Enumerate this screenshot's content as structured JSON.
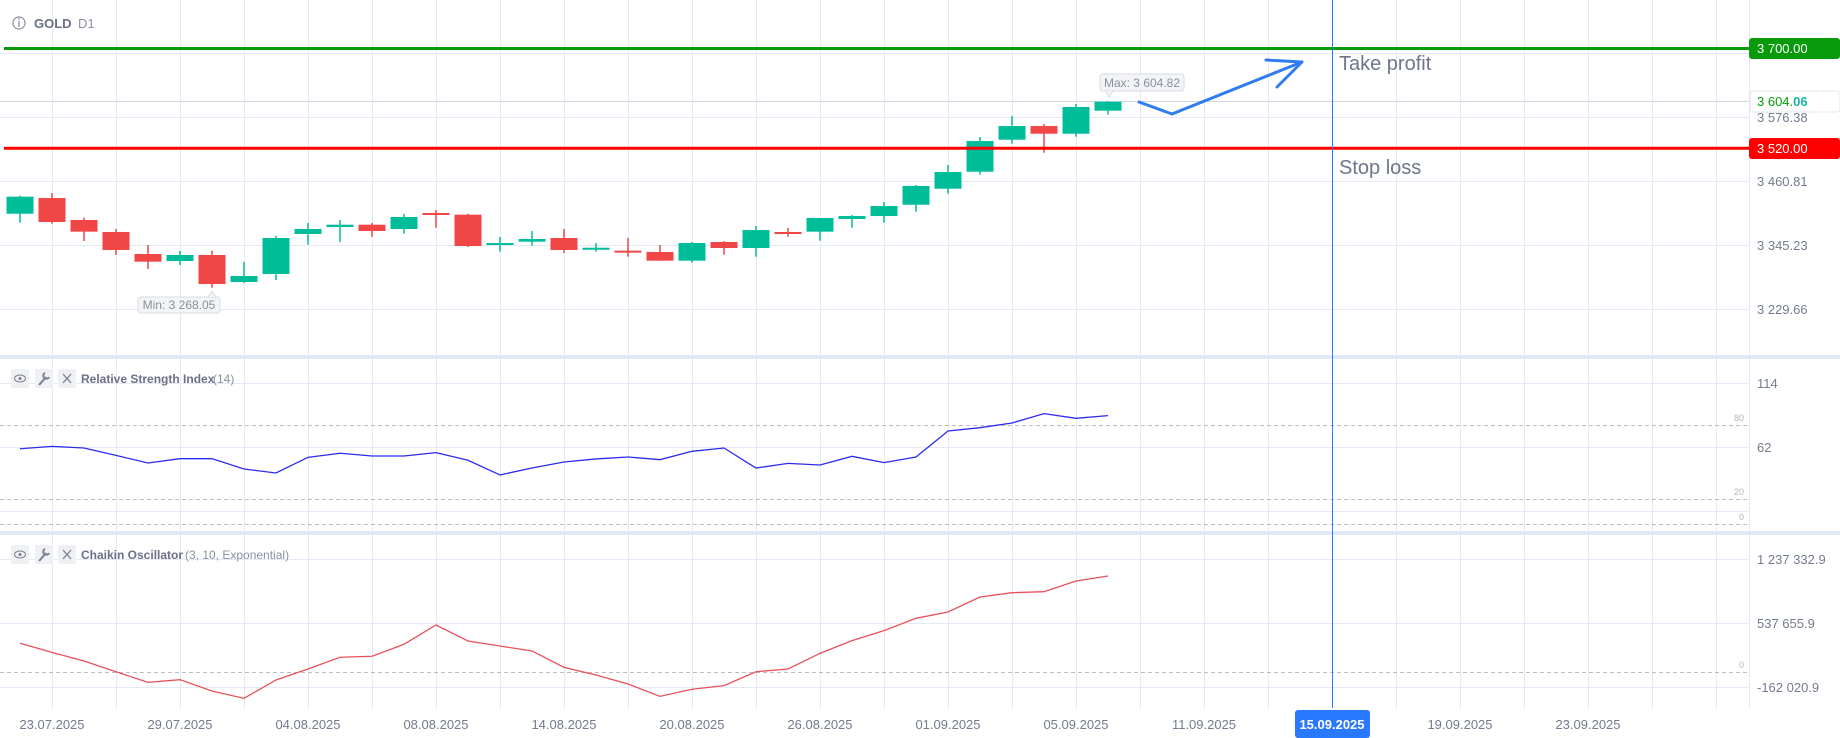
{
  "header": {
    "symbol": "GOLD",
    "timeframe": "D1",
    "info_icon": "info-icon"
  },
  "colors": {
    "up": "#00bd9a",
    "down": "#f04646",
    "take_profit": "#079b0c",
    "stop_loss": "#ff0000",
    "rsi": "#2b2bee",
    "chaikin": "#e8515a",
    "cursor": "#2979ff",
    "drawing": "#2f7df0"
  },
  "price_axis": {
    "ticks": [
      "3 576.38",
      "3 460.81",
      "3 345.23",
      "3 229.66"
    ],
    "take_profit_label": "3 700.00",
    "stop_loss_label": "3 520.00",
    "current_price_main": "3 604.",
    "current_price_decimals": "06"
  },
  "annotations": {
    "take_profit": "Take profit",
    "stop_loss": "Stop loss",
    "max_label": "Max: 3 604.82",
    "min_label": "Min: 3 268.05"
  },
  "rsi_panel": {
    "title": "Relative Strength Index",
    "params": "(14)",
    "ticks": [
      "114",
      "62"
    ],
    "levels": [
      "80",
      "20",
      "0"
    ]
  },
  "chaikin_panel": {
    "title": "Chaikin Oscillator",
    "params": "(3, 10, Exponential)",
    "ticks": [
      "1 237 332.9",
      "537 655.9",
      "-162 020.9"
    ],
    "levels": [
      "0"
    ]
  },
  "time_axis": {
    "labels": [
      {
        "date": "23.07.2025",
        "index": 1
      },
      {
        "date": "29.07.2025",
        "index": 5
      },
      {
        "date": "04.08.2025",
        "index": 9
      },
      {
        "date": "08.08.2025",
        "index": 13
      },
      {
        "date": "14.08.2025",
        "index": 17
      },
      {
        "date": "20.08.2025",
        "index": 21
      },
      {
        "date": "26.08.2025",
        "index": 25
      },
      {
        "date": "01.09.2025",
        "index": 29
      },
      {
        "date": "05.09.2025",
        "index": 33
      },
      {
        "date": "11.09.2025",
        "index": 37
      },
      {
        "date": "19.09.2025",
        "index": 45
      },
      {
        "date": "23.09.2025",
        "index": 49
      }
    ],
    "cursor_label": "15.09.2025",
    "cursor_index": 41
  },
  "chart_data": [
    {
      "type": "candlestick",
      "title": "GOLD D1",
      "ylim": [
        3180,
        3720
      ],
      "horizontal_lines": [
        {
          "name": "Take profit",
          "value": 3700.0
        },
        {
          "name": "Stop loss",
          "value": 3520.0
        }
      ],
      "current_price": 3604.06,
      "max": 3604.82,
      "min": 3268.05,
      "ohlc": [
        [
          3401.7,
          3434.3,
          3385.5,
          3432.5
        ],
        [
          3430.1,
          3439.1,
          3383.7,
          3386.8
        ],
        [
          3390.4,
          3394.5,
          3352.5,
          3369.3
        ],
        [
          3368.7,
          3374.1,
          3327.2,
          3336.2
        ],
        [
          3329.0,
          3345.2,
          3301.9,
          3315.1
        ],
        [
          3316.3,
          3334.4,
          3309.1,
          3327.2
        ],
        [
          3327.2,
          3335.0,
          3268.05,
          3274.8
        ],
        [
          3278.4,
          3314.5,
          3276.6,
          3289.3
        ],
        [
          3292.9,
          3362.0,
          3282.0,
          3357.9
        ],
        [
          3365.1,
          3385.0,
          3345.8,
          3374.1
        ],
        [
          3377.7,
          3390.4,
          3350.6,
          3381.9
        ],
        [
          3381.9,
          3385.0,
          3360.2,
          3370.5
        ],
        [
          3374.1,
          3401.2,
          3365.6,
          3395.8
        ],
        [
          3403.0,
          3408.4,
          3376.5,
          3400.0
        ],
        [
          3400.0,
          3401.7,
          3341.6,
          3343.4
        ],
        [
          3345.8,
          3359.7,
          3333.1,
          3348.8
        ],
        [
          3351.2,
          3370.5,
          3344.0,
          3356.1
        ],
        [
          3357.9,
          3374.1,
          3330.8,
          3336.2
        ],
        [
          3338.0,
          3348.8,
          3333.1,
          3340.3
        ],
        [
          3335.0,
          3357.9,
          3324.1,
          3333.1
        ],
        [
          3332.6,
          3345.2,
          3316.9,
          3316.9
        ],
        [
          3316.9,
          3350.6,
          3313.3,
          3348.8
        ],
        [
          3350.6,
          3352.5,
          3327.7,
          3339.8
        ],
        [
          3339.8,
          3379.5,
          3324.1,
          3372.3
        ],
        [
          3368.7,
          3376.0,
          3360.2,
          3367.5
        ],
        [
          3369.3,
          3394.0,
          3353.0,
          3394.0
        ],
        [
          3392.2,
          3399.4,
          3376.5,
          3397.6
        ],
        [
          3397.6,
          3422.9,
          3385.5,
          3415.7
        ],
        [
          3418.0,
          3453.6,
          3405.4,
          3451.8
        ],
        [
          3446.9,
          3489.7,
          3437.9,
          3477.1
        ],
        [
          3477.6,
          3540.3,
          3472.2,
          3533.0
        ],
        [
          3535.4,
          3578.2,
          3528.2,
          3560.1
        ],
        [
          3560.1,
          3563.7,
          3511.9,
          3546.2
        ],
        [
          3546.2,
          3599.9,
          3540.8,
          3594.5
        ],
        [
          3587.8,
          3604.82,
          3580.5,
          3604.06
        ]
      ]
    },
    {
      "type": "line",
      "title": "Relative Strength Index (14)",
      "ylim": [
        0,
        114
      ],
      "levels": [
        80,
        20,
        0
      ],
      "values": [
        60.6,
        62.5,
        61.2,
        55.2,
        49.0,
        52.5,
        52.5,
        44.1,
        40.9,
        53.6,
        56.9,
        54.7,
        54.7,
        57.4,
        51.2,
        39.3,
        44.9,
        49.8,
        52.3,
        53.9,
        51.7,
        58.5,
        61.2,
        44.9,
        48.7,
        47.4,
        54.4,
        49.3,
        53.9,
        75.0,
        77.7,
        81.5,
        89.1,
        85.3,
        87.5
      ]
    },
    {
      "type": "line",
      "title": "Chaikin Oscillator (3, 10, Exponential)",
      "ylim": [
        -162020.9,
        1237332.9
      ],
      "levels": [
        0
      ],
      "values": [
        313800,
        215000,
        120000,
        3000,
        -113000,
        -84000,
        -208000,
        -288000,
        -87000,
        33000,
        161000,
        172000,
        303000,
        514000,
        339000,
        284000,
        230000,
        51000,
        -33000,
        -131000,
        -266000,
        -189000,
        -149000,
        3000,
        33000,
        204000,
        343000,
        452000,
        587000,
        656000,
        820000,
        867000,
        878000,
        995000,
        1050000
      ]
    }
  ]
}
